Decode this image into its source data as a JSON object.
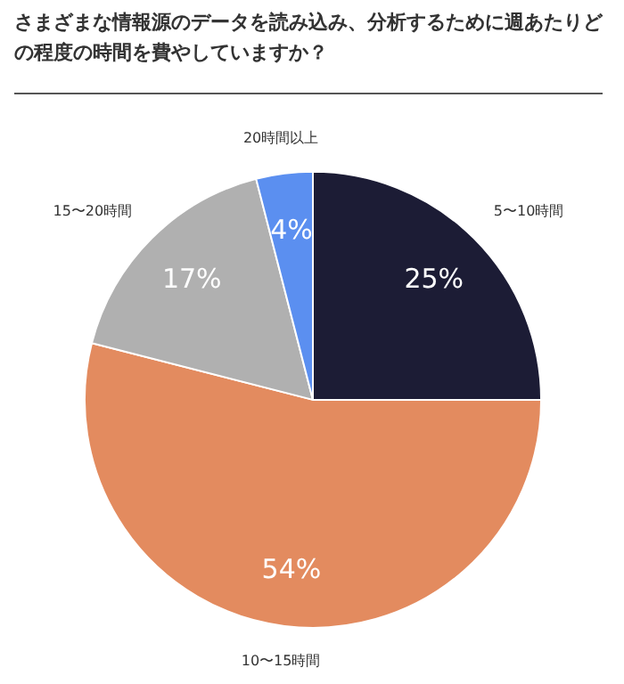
{
  "chart_data": {
    "type": "pie",
    "title": "さまざまな情報源のデータを読み込み、分析するために週あたりどの程度の時間を費やしていますか？",
    "categories": [
      "5〜10時間",
      "10〜15時間",
      "15〜20時間",
      "20時間以上"
    ],
    "values": [
      25,
      54,
      17,
      4
    ],
    "colors": [
      "#1c1c35",
      "#e38b5f",
      "#b0b0b0",
      "#5b8ff0"
    ],
    "value_labels": [
      "25%",
      "54%",
      "17%",
      "4%"
    ]
  }
}
